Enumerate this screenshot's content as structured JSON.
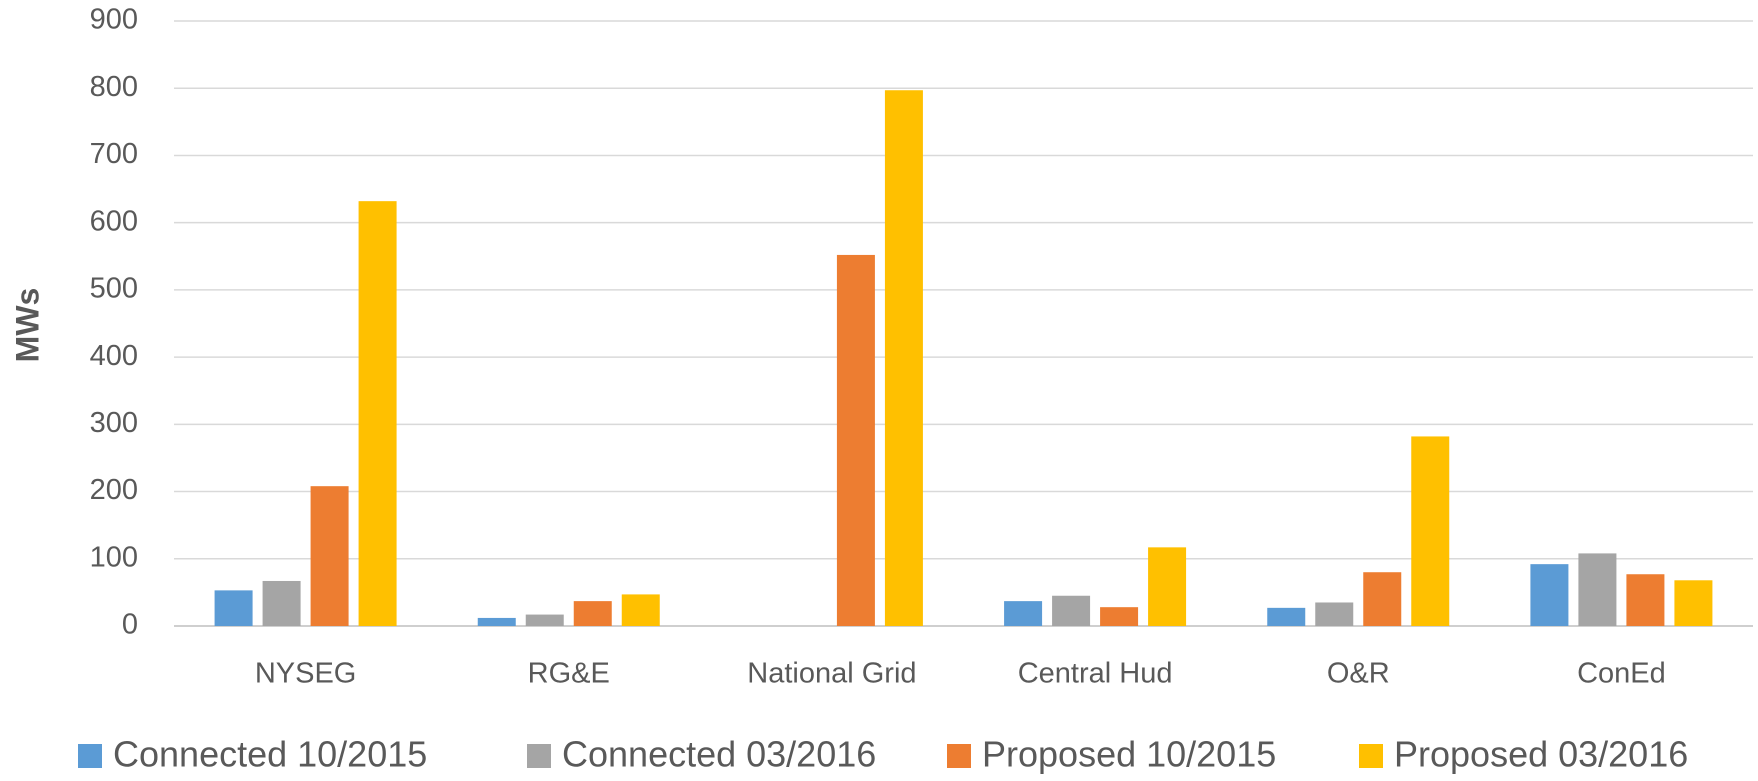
{
  "chart_data": {
    "type": "bar",
    "y_label": "MWs",
    "categories": [
      "NYSEG",
      "RG&E",
      "National Grid",
      "Central Hud",
      "O&R",
      "ConEd"
    ],
    "series": [
      {
        "name": "Connected 10/2015",
        "color": "#5b9bd5",
        "values": [
          53,
          12,
          0,
          37,
          27,
          92
        ]
      },
      {
        "name": "Connected 03/2016",
        "color": "#a5a5a5",
        "values": [
          67,
          17,
          0,
          45,
          35,
          108
        ]
      },
      {
        "name": "Proposed 10/2015",
        "color": "#ed7d31",
        "values": [
          208,
          37,
          552,
          28,
          80,
          77
        ]
      },
      {
        "name": "Proposed 03/2016",
        "color": "#ffc000",
        "values": [
          632,
          47,
          797,
          117,
          282,
          68
        ]
      }
    ],
    "ylim": [
      0,
      900
    ],
    "yticks": [
      0,
      100,
      200,
      300,
      400,
      500,
      600,
      700,
      800,
      900
    ],
    "grid": true,
    "legend": "bottom"
  }
}
